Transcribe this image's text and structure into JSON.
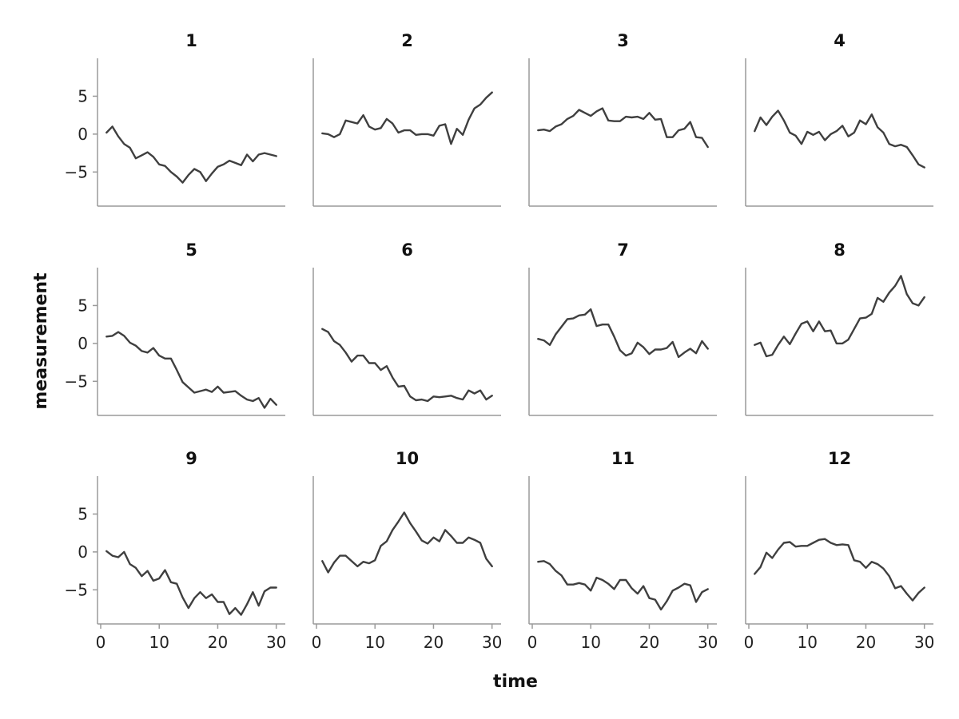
{
  "chart_data": {
    "type": "line",
    "layout": "small-multiples",
    "rows": 3,
    "cols": 4,
    "xlabel": "time",
    "ylabel": "measurement",
    "xlim": [
      0,
      31
    ],
    "ylim": [
      -9.5,
      10
    ],
    "xticks": [
      0,
      10,
      20,
      30
    ],
    "yticks": [
      -5,
      0,
      5
    ],
    "grid": false,
    "line_color": "#3f3f3f",
    "axis_color": "#9a9a9a",
    "panels": [
      {
        "title": "1",
        "x": [
          1,
          2,
          3,
          4,
          5,
          6,
          7,
          8,
          9,
          10,
          11,
          12,
          13,
          14,
          15,
          16,
          17,
          18,
          19,
          20,
          21,
          22,
          23,
          24,
          25,
          26,
          27,
          28,
          29,
          30
        ],
        "y": [
          0.2,
          1.0,
          -0.3,
          -1.3,
          -1.8,
          -3.2,
          -2.8,
          -2.4,
          -3.0,
          -4.0,
          -4.2,
          -5.0,
          -5.6,
          -6.4,
          -5.4,
          -4.6,
          -5.0,
          -6.2,
          -5.2,
          -4.3,
          -4.0,
          -3.5,
          -3.8,
          -4.1,
          -2.7,
          -3.6,
          -2.7,
          -2.5,
          -2.7,
          -2.9
        ]
      },
      {
        "title": "2",
        "x": [
          1,
          2,
          3,
          4,
          5,
          6,
          7,
          8,
          9,
          10,
          11,
          12,
          13,
          14,
          15,
          16,
          17,
          18,
          19,
          20,
          21,
          22,
          23,
          24,
          25,
          26,
          27,
          28,
          29,
          30
        ],
        "y": [
          0.1,
          0.0,
          -0.4,
          0.0,
          1.8,
          1.6,
          1.4,
          2.5,
          1.0,
          0.6,
          0.8,
          2.0,
          1.4,
          0.2,
          0.5,
          0.5,
          -0.1,
          0.0,
          0.0,
          -0.2,
          1.1,
          1.3,
          -1.3,
          0.7,
          -0.1,
          1.9,
          3.4,
          3.9,
          4.8,
          5.5
        ]
      },
      {
        "title": "3",
        "x": [
          1,
          2,
          3,
          4,
          5,
          6,
          7,
          8,
          9,
          10,
          11,
          12,
          13,
          14,
          15,
          16,
          17,
          18,
          19,
          20,
          21,
          22,
          23,
          24,
          25,
          26,
          27,
          28,
          29,
          30
        ],
        "y": [
          0.5,
          0.6,
          0.4,
          1.0,
          1.3,
          2.0,
          2.4,
          3.2,
          2.8,
          2.4,
          3.0,
          3.4,
          1.8,
          1.7,
          1.7,
          2.3,
          2.2,
          2.3,
          2.0,
          2.8,
          1.9,
          2.0,
          -0.4,
          -0.4,
          0.5,
          0.7,
          1.6,
          -0.4,
          -0.5,
          -1.7
        ]
      },
      {
        "title": "4",
        "x": [
          1,
          2,
          3,
          4,
          5,
          6,
          7,
          8,
          9,
          10,
          11,
          12,
          13,
          14,
          15,
          16,
          17,
          18,
          19,
          20,
          21,
          22,
          23,
          24,
          25,
          26,
          27,
          28,
          29,
          30
        ],
        "y": [
          0.4,
          2.2,
          1.2,
          2.3,
          3.1,
          1.8,
          0.2,
          -0.2,
          -1.3,
          0.3,
          -0.1,
          0.3,
          -0.8,
          0.0,
          0.4,
          1.1,
          -0.3,
          0.2,
          1.8,
          1.3,
          2.6,
          0.9,
          0.2,
          -1.3,
          -1.6,
          -1.4,
          -1.7,
          -2.8,
          -4.0,
          -4.4
        ]
      },
      {
        "title": "5",
        "x": [
          1,
          2,
          3,
          4,
          5,
          6,
          7,
          8,
          9,
          10,
          11,
          12,
          13,
          14,
          15,
          16,
          17,
          18,
          19,
          20,
          21,
          22,
          23,
          24,
          25,
          26,
          27,
          28,
          29,
          30
        ],
        "y": [
          0.9,
          1.0,
          1.5,
          1.0,
          0.1,
          -0.3,
          -1.0,
          -1.2,
          -0.6,
          -1.6,
          -2.0,
          -2.0,
          -3.5,
          -5.1,
          -5.8,
          -6.5,
          -6.3,
          -6.1,
          -6.4,
          -5.7,
          -6.5,
          -6.4,
          -6.3,
          -6.9,
          -7.4,
          -7.6,
          -7.2,
          -8.5,
          -7.3,
          -8.1
        ]
      },
      {
        "title": "6",
        "x": [
          1,
          2,
          3,
          4,
          5,
          6,
          7,
          8,
          9,
          10,
          11,
          12,
          13,
          14,
          15,
          16,
          17,
          18,
          19,
          20,
          21,
          22,
          23,
          24,
          25,
          26,
          27,
          28,
          29,
          30
        ],
        "y": [
          1.9,
          1.5,
          0.3,
          -0.2,
          -1.2,
          -2.4,
          -1.6,
          -1.6,
          -2.6,
          -2.6,
          -3.5,
          -3.0,
          -4.5,
          -5.7,
          -5.6,
          -7.0,
          -7.5,
          -7.4,
          -7.6,
          -7.0,
          -7.1,
          -7.0,
          -6.9,
          -7.2,
          -7.4,
          -6.2,
          -6.6,
          -6.2,
          -7.4,
          -6.9
        ]
      },
      {
        "title": "7",
        "x": [
          1,
          2,
          3,
          4,
          5,
          6,
          7,
          8,
          9,
          10,
          11,
          12,
          13,
          14,
          15,
          16,
          17,
          18,
          19,
          20,
          21,
          22,
          23,
          24,
          25,
          26,
          27,
          28,
          29,
          30
        ],
        "y": [
          0.6,
          0.4,
          -0.2,
          1.2,
          2.2,
          3.2,
          3.3,
          3.7,
          3.8,
          4.5,
          2.3,
          2.5,
          2.5,
          0.9,
          -0.9,
          -1.6,
          -1.3,
          0.1,
          -0.5,
          -1.4,
          -0.8,
          -0.8,
          -0.6,
          0.2,
          -1.8,
          -1.2,
          -0.7,
          -1.3,
          0.3,
          -0.7
        ]
      },
      {
        "title": "8",
        "x": [
          1,
          2,
          3,
          4,
          5,
          6,
          7,
          8,
          9,
          10,
          11,
          12,
          13,
          14,
          15,
          16,
          17,
          18,
          19,
          20,
          21,
          22,
          23,
          24,
          25,
          26,
          27,
          28,
          29,
          30
        ],
        "y": [
          -0.2,
          0.1,
          -1.7,
          -1.5,
          -0.2,
          0.9,
          -0.1,
          1.3,
          2.6,
          2.9,
          1.6,
          2.9,
          1.6,
          1.7,
          0.0,
          0.0,
          0.5,
          1.9,
          3.3,
          3.4,
          3.9,
          6.0,
          5.5,
          6.7,
          7.6,
          8.9,
          6.5,
          5.3,
          5.0,
          6.1
        ]
      },
      {
        "title": "9",
        "x": [
          1,
          2,
          3,
          4,
          5,
          6,
          7,
          8,
          9,
          10,
          11,
          12,
          13,
          14,
          15,
          16,
          17,
          18,
          19,
          20,
          21,
          22,
          23,
          24,
          25,
          26,
          27,
          28,
          29,
          30
        ],
        "y": [
          0.1,
          -0.5,
          -0.7,
          0.0,
          -1.6,
          -2.1,
          -3.2,
          -2.5,
          -3.8,
          -3.5,
          -2.4,
          -4.0,
          -4.2,
          -6.0,
          -7.4,
          -6.1,
          -5.3,
          -6.1,
          -5.6,
          -6.6,
          -6.6,
          -8.2,
          -7.4,
          -8.3,
          -6.9,
          -5.3,
          -7.1,
          -5.2,
          -4.7,
          -4.7
        ]
      },
      {
        "title": "10",
        "x": [
          1,
          2,
          3,
          4,
          5,
          6,
          7,
          8,
          9,
          10,
          11,
          12,
          13,
          14,
          15,
          16,
          17,
          18,
          19,
          20,
          21,
          22,
          23,
          24,
          25,
          26,
          27,
          28,
          29,
          30
        ],
        "y": [
          -1.2,
          -2.7,
          -1.4,
          -0.5,
          -0.5,
          -1.2,
          -1.9,
          -1.3,
          -1.5,
          -1.1,
          0.8,
          1.4,
          2.9,
          4.0,
          5.2,
          3.8,
          2.7,
          1.5,
          1.1,
          1.9,
          1.4,
          2.9,
          2.1,
          1.2,
          1.2,
          1.9,
          1.6,
          1.2,
          -0.9,
          -1.9
        ]
      },
      {
        "title": "11",
        "x": [
          1,
          2,
          3,
          4,
          5,
          6,
          7,
          8,
          9,
          10,
          11,
          12,
          13,
          14,
          15,
          16,
          17,
          18,
          19,
          20,
          21,
          22,
          23,
          24,
          25,
          26,
          27,
          28,
          29,
          30
        ],
        "y": [
          -1.3,
          -1.2,
          -1.6,
          -2.5,
          -3.1,
          -4.3,
          -4.3,
          -4.1,
          -4.3,
          -5.1,
          -3.4,
          -3.7,
          -4.2,
          -4.9,
          -3.7,
          -3.7,
          -4.8,
          -5.5,
          -4.5,
          -6.1,
          -6.3,
          -7.6,
          -6.5,
          -5.1,
          -4.7,
          -4.2,
          -4.4,
          -6.6,
          -5.3,
          -4.9
        ]
      },
      {
        "title": "12",
        "x": [
          1,
          2,
          3,
          4,
          5,
          6,
          7,
          8,
          9,
          10,
          11,
          12,
          13,
          14,
          15,
          16,
          17,
          18,
          19,
          20,
          21,
          22,
          23,
          24,
          25,
          26,
          27,
          28,
          29,
          30
        ],
        "y": [
          -2.9,
          -2.0,
          -0.1,
          -0.8,
          0.3,
          1.2,
          1.3,
          0.7,
          0.8,
          0.8,
          1.2,
          1.6,
          1.7,
          1.2,
          0.9,
          1.0,
          0.9,
          -1.1,
          -1.3,
          -2.1,
          -1.3,
          -1.6,
          -2.2,
          -3.2,
          -4.8,
          -4.5,
          -5.5,
          -6.4,
          -5.4,
          -4.7
        ]
      }
    ]
  }
}
